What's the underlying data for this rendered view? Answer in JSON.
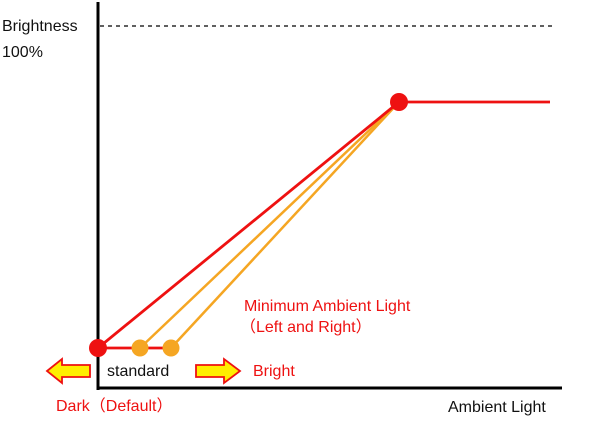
{
  "labels": {
    "y_axis_title": "Brightness",
    "y_max": "100%",
    "x_axis_title": "Ambient Light",
    "annotation_line1": "Minimum Ambient Light",
    "annotation_line2": "（Left and Right）",
    "standard": "standard",
    "bright": "Bright",
    "dark_default": "Dark（Default）"
  },
  "colors": {
    "red": "#ee1111",
    "orange": "#f5a623",
    "arrow_fill": "#ffee00",
    "arrow_stroke": "#ee1111",
    "axis": "#000000"
  }
}
